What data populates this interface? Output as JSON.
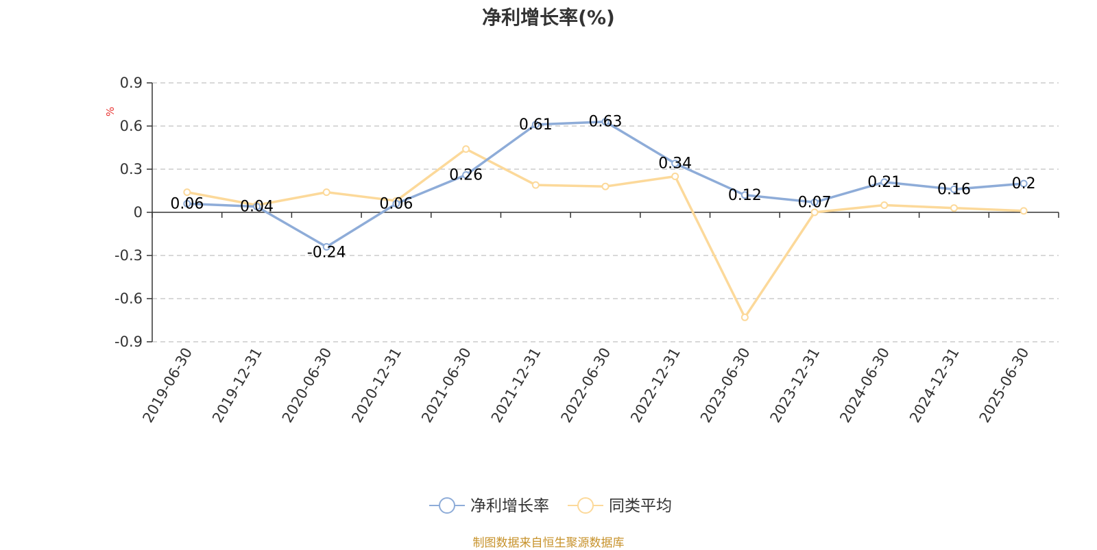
{
  "chart_data": {
    "type": "line",
    "title": "净利增长率(%)",
    "ylabel": "%",
    "ylim": [
      -0.9,
      0.9
    ],
    "yticks": [
      -0.9,
      -0.6,
      -0.3,
      0,
      0.3,
      0.6,
      0.9
    ],
    "ytick_labels": [
      "-0.9",
      "-0.6",
      "-0.3",
      "0",
      "0.3",
      "0.6",
      "0.9"
    ],
    "grid": true,
    "legend_position": "bottom-center",
    "categories": [
      "2019-06-30",
      "2019-12-31",
      "2020-06-30",
      "2020-12-31",
      "2021-06-30",
      "2021-12-31",
      "2022-06-30",
      "2022-12-31",
      "2023-06-30",
      "2023-12-31",
      "2024-06-30",
      "2024-12-31",
      "2025-06-30"
    ],
    "series": [
      {
        "name": "净利增长率",
        "color": "#8eacd8",
        "values": [
          0.06,
          0.04,
          -0.24,
          0.06,
          0.26,
          0.61,
          0.63,
          0.34,
          0.12,
          0.07,
          0.21,
          0.16,
          0.2
        ],
        "labels": [
          "0.06",
          "0.04",
          "-0.24",
          "0.06",
          "0.26",
          "0.61",
          "0.63",
          "0.34",
          "0.12",
          "0.07",
          "0.21",
          "0.16",
          "0.2"
        ]
      },
      {
        "name": "同类平均",
        "color": "#fcd99a",
        "values": [
          0.14,
          0.05,
          0.14,
          0.08,
          0.44,
          0.19,
          0.18,
          0.25,
          -0.73,
          0.0,
          0.05,
          0.03,
          0.01
        ]
      }
    ]
  },
  "footer": {
    "source": "制图数据来自恒生聚源数据库"
  }
}
